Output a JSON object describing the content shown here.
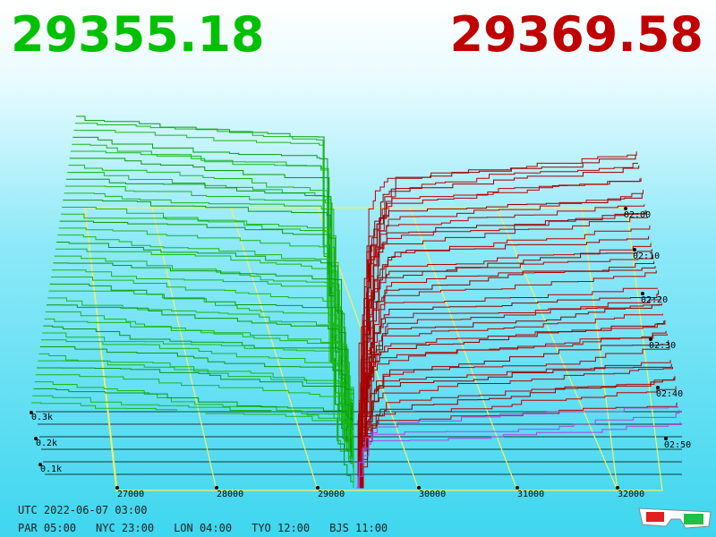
{
  "prices": {
    "bid": "29355.18",
    "ask": "29369.58"
  },
  "price_axis": [
    "27000",
    "28000",
    "29000",
    "30000",
    "31000",
    "32000"
  ],
  "depth_axis": [
    "0.1k",
    "0.2k",
    "0.3k"
  ],
  "time_axis": [
    "02:00",
    "02:10",
    "02:20",
    "02:30",
    "02:40",
    "02:50"
  ],
  "clock": {
    "utc": "UTC 2022-06-07 03:00",
    "zones": [
      "PAR 05:00",
      "NYC 23:00",
      "LON 04:00",
      "TYO 12:00",
      "BJS 11:00"
    ]
  }
}
